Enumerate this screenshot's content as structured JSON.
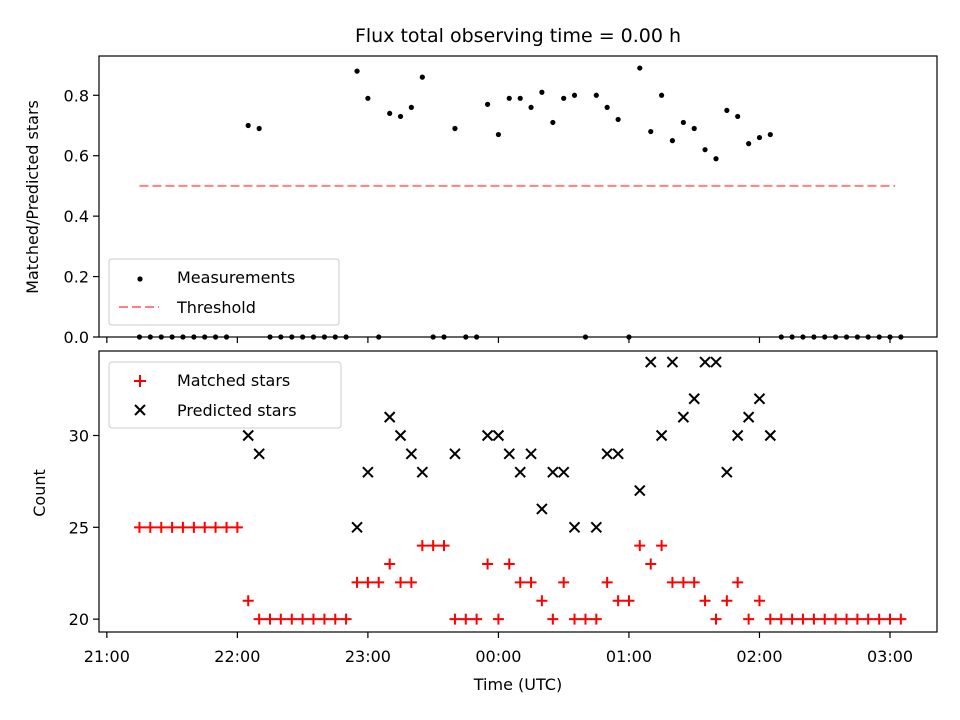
{
  "chart_data": [
    {
      "type": "scatter",
      "title": "Flux total observing time = 0.00 h",
      "xlabel": "",
      "ylabel": "Matched/Predicted stars",
      "ylim": [
        0,
        0.93
      ],
      "yticks": [
        0.0,
        0.2,
        0.4,
        0.6,
        0.8
      ],
      "ytick_labels": [
        "0.0",
        "0.2",
        "0.4",
        "0.6",
        "0.8"
      ],
      "legend": {
        "placement": "lower-left"
      },
      "series": [
        {
          "name": "Measurements",
          "marker": "dot",
          "color": "#000000",
          "x": [
            21.25,
            21.333,
            21.417,
            21.5,
            21.583,
            21.667,
            21.75,
            21.833,
            21.917,
            22.083,
            22.167,
            22.25,
            22.333,
            22.417,
            22.5,
            22.583,
            22.667,
            22.75,
            22.833,
            22.917,
            23.0,
            23.083,
            23.167,
            23.25,
            23.333,
            23.417,
            23.5,
            23.583,
            23.667,
            23.75,
            23.833,
            23.917,
            24.0,
            24.083,
            24.167,
            24.25,
            24.333,
            24.417,
            24.5,
            24.583,
            24.667,
            24.75,
            24.833,
            24.917,
            25.0,
            25.083,
            25.167,
            25.25,
            25.333,
            25.417,
            25.5,
            25.583,
            25.667,
            25.75,
            25.833,
            25.917,
            26.0,
            26.083,
            26.167,
            26.25,
            26.333,
            26.417,
            26.5,
            26.583,
            26.667,
            26.75,
            26.833,
            26.917,
            27.0,
            27.083
          ],
          "y": [
            0,
            0,
            0,
            0,
            0,
            0,
            0,
            0,
            0,
            0.7,
            0.69,
            0,
            0,
            0,
            0,
            0,
            0,
            0,
            0,
            0.88,
            0.79,
            0,
            0.74,
            0.73,
            0.76,
            0.86,
            0,
            0,
            0.69,
            0,
            0,
            0.77,
            0.67,
            0.79,
            0.79,
            0.76,
            0.81,
            0.71,
            0.79,
            0.8,
            0,
            0.8,
            0.76,
            0.72,
            0,
            0.89,
            0.68,
            0.8,
            0.65,
            0.71,
            0.69,
            0.62,
            0.59,
            0.75,
            0.73,
            0.64,
            0.66,
            0.67,
            0,
            0,
            0,
            0,
            0,
            0,
            0,
            0,
            0,
            0,
            0,
            0
          ]
        },
        {
          "name": "Threshold",
          "type": "line",
          "style": "dashed",
          "color": "#ff8080",
          "x": [
            21.25,
            27.04
          ],
          "y": [
            0.5,
            0.5
          ]
        }
      ]
    },
    {
      "type": "scatter",
      "xlabel": "Time (UTC)",
      "ylabel": "Count",
      "xlim": [
        20.94,
        27.36
      ],
      "ylim": [
        19.3,
        34.6
      ],
      "xticks": [
        21,
        22,
        23,
        24,
        25,
        26,
        27
      ],
      "xtick_labels": [
        "21:00",
        "22:00",
        "23:00",
        "00:00",
        "01:00",
        "02:00",
        "03:00"
      ],
      "yticks": [
        20,
        25,
        30
      ],
      "ytick_labels": [
        "20",
        "25",
        "30"
      ],
      "legend": {
        "placement": "top-left"
      },
      "series": [
        {
          "name": "Matched stars",
          "marker": "plus",
          "color": "#ff0000",
          "x": [
            21.25,
            21.333,
            21.417,
            21.5,
            21.583,
            21.667,
            21.75,
            21.833,
            21.917,
            22.0,
            22.083,
            22.167,
            22.25,
            22.333,
            22.417,
            22.5,
            22.583,
            22.667,
            22.75,
            22.833,
            22.917,
            23.0,
            23.083,
            23.167,
            23.25,
            23.333,
            23.417,
            23.5,
            23.583,
            23.667,
            23.75,
            23.833,
            23.917,
            24.0,
            24.083,
            24.167,
            24.25,
            24.333,
            24.417,
            24.5,
            24.583,
            24.667,
            24.75,
            24.833,
            24.917,
            25.0,
            25.083,
            25.167,
            25.25,
            25.333,
            25.417,
            25.5,
            25.583,
            25.667,
            25.75,
            25.833,
            25.917,
            26.0,
            26.083,
            26.167,
            26.25,
            26.333,
            26.417,
            26.5,
            26.583,
            26.667,
            26.75,
            26.833,
            26.917,
            27.0,
            27.083
          ],
          "y": [
            25,
            25,
            25,
            25,
            25,
            25,
            25,
            25,
            25,
            25,
            21,
            20,
            20,
            20,
            20,
            20,
            20,
            20,
            20,
            20,
            22,
            22,
            22,
            23,
            22,
            22,
            24,
            24,
            24,
            20,
            20,
            20,
            23,
            20,
            23,
            22,
            22,
            21,
            20,
            22,
            20,
            20,
            20,
            22,
            21,
            21,
            24,
            23,
            24,
            22,
            22,
            22,
            21,
            20,
            21,
            22,
            20,
            21,
            20,
            20,
            20,
            20,
            20,
            20,
            20,
            20,
            20,
            20,
            20,
            20,
            20
          ]
        },
        {
          "name": "Predicted stars",
          "marker": "x",
          "color": "#000000",
          "x": [
            22.083,
            22.167,
            22.917,
            23.0,
            23.167,
            23.25,
            23.333,
            23.417,
            23.667,
            23.917,
            24.0,
            24.083,
            24.167,
            24.25,
            24.333,
            24.417,
            24.5,
            24.583,
            24.75,
            24.833,
            24.917,
            25.083,
            25.167,
            25.25,
            25.333,
            25.417,
            25.5,
            25.583,
            25.667,
            25.75,
            25.833,
            25.917,
            26.0,
            26.083
          ],
          "y": [
            30,
            29,
            25,
            28,
            31,
            30,
            29,
            28,
            29,
            30,
            30,
            29,
            28,
            29,
            26,
            28,
            28,
            25,
            25,
            29,
            29,
            27,
            34,
            30,
            34,
            31,
            32,
            34,
            34,
            28,
            30,
            31,
            32,
            30
          ]
        }
      ]
    }
  ]
}
